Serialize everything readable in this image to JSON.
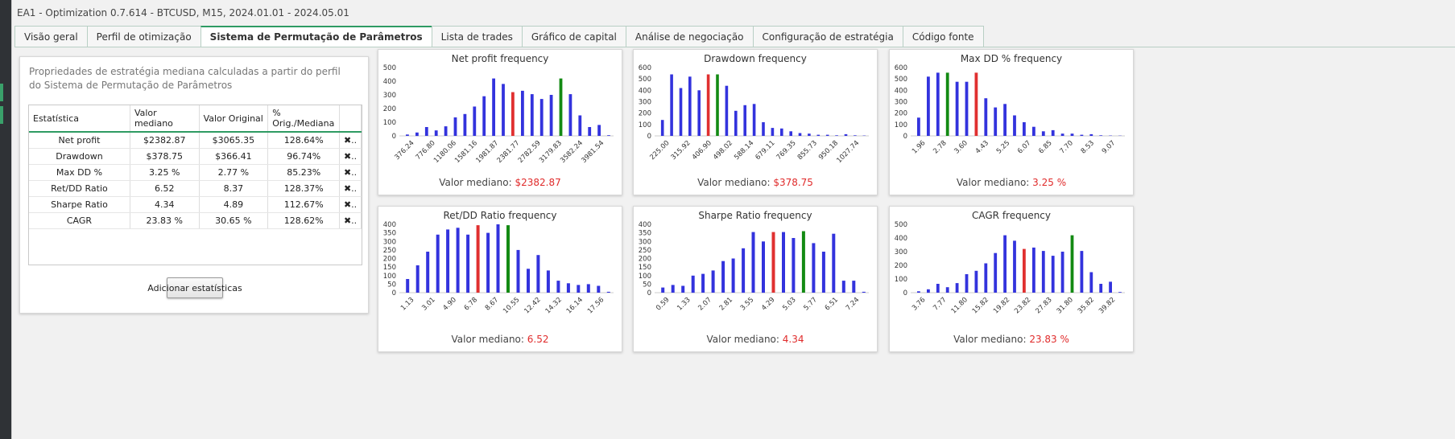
{
  "window": {
    "title": "EA1 - Optimization 0.7.614 - BTCUSD, M15, 2024.01.01 - 2024.05.01"
  },
  "tabs": [
    "Visão geral",
    "Perfil de otimização",
    "Sistema de Permutação de Parâmetros",
    "Lista de trades",
    "Gráfico de capital",
    "Análise de negociação",
    "Configuração de estratégia",
    "Código fonte"
  ],
  "active_tab": 2,
  "sidebar": {
    "description": "Propriedades de estratégia mediana calculadas a partir do perfil do Sistema de Permutação de Parâmetros",
    "table": {
      "headers": [
        "Estatística",
        "Valor mediano",
        "Valor Original",
        "% Orig./Mediana",
        ""
      ],
      "rows": [
        [
          "Net profit",
          "$2382.87",
          "$3065.35",
          "128.64%",
          "✖.."
        ],
        [
          "Drawdown",
          "$378.75",
          "$366.41",
          "96.74%",
          "✖.."
        ],
        [
          "Max DD %",
          "3.25 %",
          "2.77 %",
          "85.23%",
          "✖.."
        ],
        [
          "Ret/DD Ratio",
          "6.52",
          "8.37",
          "128.37%",
          "✖.."
        ],
        [
          "Sharpe Ratio",
          "4.34",
          "4.89",
          "112.67%",
          "✖.."
        ],
        [
          "CAGR",
          "23.83 %",
          "30.65 %",
          "128.62%",
          "✖.."
        ]
      ]
    },
    "add_button": "Adicionar estatísticas"
  },
  "colors": {
    "bar": "#3333dd",
    "median": "#e03030",
    "original": "#138a13",
    "accent": "#2e9b63"
  },
  "chart_data": [
    {
      "type": "bar",
      "title": "Net profit frequency",
      "footer_label": "Valor mediano:",
      "footer_value": "$2382.87",
      "yticks": [
        0,
        100,
        200,
        300,
        400,
        500
      ],
      "ylim": [
        0,
        500
      ],
      "xticklabels": [
        "376.24",
        "776.80",
        "1180.06",
        "1581.16",
        "1981.87",
        "2381.77",
        "2782.59",
        "3179.83",
        "3582.24",
        "3981.54"
      ],
      "values": [
        10,
        25,
        65,
        40,
        70,
        135,
        160,
        215,
        290,
        420,
        380,
        320,
        330,
        305,
        270,
        300,
        420,
        305,
        150,
        65,
        80,
        5
      ],
      "median_index": 11,
      "original_index": 16
    },
    {
      "type": "bar",
      "title": "Drawdown frequency",
      "footer_label": "Valor mediano:",
      "footer_value": "$378.75",
      "yticks": [
        0,
        100,
        200,
        300,
        400,
        500,
        600
      ],
      "ylim": [
        0,
        600
      ],
      "xticklabels": [
        "225.00",
        "315.92",
        "406.90",
        "498.02",
        "588.14",
        "679.11",
        "769.35",
        "855.73",
        "950.18",
        "1027.74"
      ],
      "values": [
        140,
        540,
        420,
        520,
        400,
        540,
        540,
        440,
        220,
        270,
        280,
        120,
        70,
        65,
        40,
        25,
        20,
        10,
        10,
        5,
        15,
        5,
        3
      ],
      "median_index": 5,
      "original_index": 6
    },
    {
      "type": "bar",
      "title": "Max DD % frequency",
      "footer_label": "Valor mediano:",
      "footer_value": "3.25 %",
      "yticks": [
        0,
        100,
        200,
        300,
        400,
        500,
        600
      ],
      "ylim": [
        0,
        600
      ],
      "xticklabels": [
        "1.96",
        "2.78",
        "3.60",
        "4.43",
        "5.25",
        "6.07",
        "6.85",
        "7.70",
        "8.53",
        "9.07"
      ],
      "values": [
        160,
        520,
        555,
        555,
        475,
        475,
        555,
        330,
        250,
        280,
        180,
        120,
        80,
        40,
        50,
        20,
        20,
        10,
        15,
        5,
        3,
        2
      ],
      "median_index": 6,
      "original_index": 3
    },
    {
      "type": "bar",
      "title": "Ret/DD Ratio frequency",
      "footer_label": "Valor mediano:",
      "footer_value": "6.52",
      "yticks": [
        0,
        50,
        100,
        150,
        200,
        250,
        300,
        350,
        400
      ],
      "ylim": [
        0,
        400
      ],
      "xticklabels": [
        "1.13",
        "3.01",
        "4.90",
        "6.78",
        "8.67",
        "10.55",
        "12.42",
        "14.32",
        "16.14",
        "17.56"
      ],
      "values": [
        80,
        160,
        240,
        340,
        370,
        380,
        340,
        395,
        350,
        400,
        395,
        250,
        140,
        220,
        130,
        70,
        55,
        45,
        50,
        40,
        5
      ],
      "median_index": 7,
      "original_index": 10
    },
    {
      "type": "bar",
      "title": "Sharpe Ratio frequency",
      "footer_label": "Valor mediano:",
      "footer_value": "4.34",
      "yticks": [
        0,
        50,
        100,
        150,
        200,
        250,
        300,
        350,
        400
      ],
      "ylim": [
        0,
        400
      ],
      "xticklabels": [
        "0.59",
        "1.33",
        "2.07",
        "2.81",
        "3.55",
        "4.29",
        "5.03",
        "5.77",
        "6.51",
        "7.24"
      ],
      "values": [
        30,
        45,
        40,
        100,
        110,
        130,
        185,
        200,
        260,
        355,
        300,
        355,
        355,
        320,
        360,
        290,
        240,
        345,
        70,
        70,
        5
      ],
      "median_index": 11,
      "original_index": 14
    },
    {
      "type": "bar",
      "title": "CAGR frequency",
      "footer_label": "Valor mediano:",
      "footer_value": "23.83 %",
      "yticks": [
        0,
        100,
        200,
        300,
        400,
        500
      ],
      "ylim": [
        0,
        500
      ],
      "xticklabels": [
        "3.76",
        "7.77",
        "11.80",
        "15.82",
        "19.82",
        "23.82",
        "27.83",
        "31.80",
        "35.82",
        "39.82"
      ],
      "values": [
        10,
        25,
        65,
        40,
        70,
        135,
        160,
        215,
        290,
        420,
        380,
        320,
        330,
        305,
        270,
        300,
        420,
        305,
        150,
        65,
        80,
        5
      ],
      "median_index": 11,
      "original_index": 16
    }
  ]
}
